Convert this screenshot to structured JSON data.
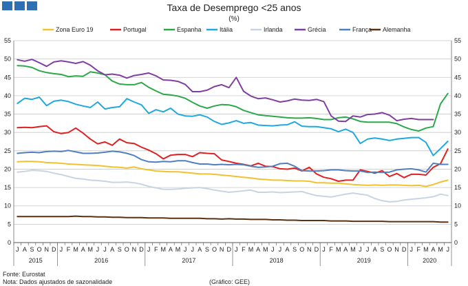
{
  "header": {
    "title": "Taxa de Desemprego <25 anos",
    "subtitle": "(%)"
  },
  "footer": {
    "source": "Fonte: Eurostat",
    "note": "Nota: Dados ajustados de sazonalidade",
    "credit": "(Gráfico: GEE)"
  },
  "colors": {
    "logo": "#2f6fb4",
    "grid": "#c8c8c8"
  },
  "chart_data": {
    "type": "line",
    "title": "Taxa de Desemprego <25 anos",
    "subtitle": "(%)",
    "ylim": [
      0,
      55
    ],
    "yticks": [
      0,
      5,
      10,
      15,
      20,
      25,
      30,
      35,
      40,
      45,
      50,
      55
    ],
    "legend_position": "top",
    "grid": "horizontal",
    "right_axis": true,
    "x_months": [
      "J",
      "A",
      "S",
      "O",
      "N",
      "D",
      "J",
      "F",
      "M",
      "A",
      "M",
      "J",
      "J",
      "A",
      "S",
      "O",
      "N",
      "D",
      "J",
      "F",
      "M",
      "A",
      "M",
      "J",
      "J",
      "A",
      "S",
      "O",
      "N",
      "D",
      "J",
      "F",
      "M",
      "A",
      "M",
      "J",
      "J",
      "A",
      "S",
      "O",
      "N",
      "D",
      "J",
      "F",
      "M",
      "A",
      "M",
      "J",
      "J",
      "A",
      "S",
      "O",
      "N",
      "D",
      "J",
      "F",
      "M",
      "A",
      "M",
      "J"
    ],
    "years": [
      {
        "label": "2015",
        "start": 0,
        "end": 5
      },
      {
        "label": "2016",
        "start": 6,
        "end": 17
      },
      {
        "label": "2017",
        "start": 18,
        "end": 29
      },
      {
        "label": "2018",
        "start": 30,
        "end": 41
      },
      {
        "label": "2019",
        "start": 42,
        "end": 53
      },
      {
        "label": "2020",
        "start": 54,
        "end": 59
      }
    ],
    "series": [
      {
        "name": "Zona Euro 19",
        "color": "#f2c12e",
        "values": [
          22.0,
          22.1,
          22.1,
          22.0,
          21.8,
          21.7,
          21.6,
          21.4,
          21.3,
          21.2,
          21.1,
          21.0,
          20.8,
          20.6,
          20.5,
          20.3,
          20.6,
          20.1,
          19.8,
          19.5,
          19.4,
          19.3,
          19.3,
          19.1,
          18.9,
          18.7,
          18.7,
          18.6,
          18.4,
          18.2,
          18.0,
          17.8,
          17.6,
          17.3,
          17.2,
          17.0,
          17.0,
          16.9,
          16.8,
          16.8,
          16.7,
          16.3,
          16.3,
          16.2,
          16.2,
          16.0,
          15.8,
          15.7,
          15.6,
          15.7,
          15.6,
          15.7,
          15.7,
          15.6,
          15.5,
          15.6,
          15.3,
          15.8,
          16.5,
          17.0
        ]
      },
      {
        "name": "Portugal",
        "color": "#e02020",
        "values": [
          31.3,
          31.4,
          31.3,
          31.6,
          31.8,
          30.2,
          29.7,
          30.0,
          31.2,
          29.8,
          28.2,
          26.9,
          27.4,
          26.5,
          28.2,
          27.2,
          27.0,
          26.0,
          25.2,
          24.2,
          22.8,
          23.8,
          24.0,
          24.0,
          23.4,
          24.5,
          24.3,
          24.2,
          22.5,
          22.1,
          21.6,
          21.3,
          20.9,
          21.6,
          20.8,
          20.7,
          20.1,
          20.0,
          20.3,
          19.5,
          20.5,
          18.7,
          17.8,
          17.4,
          16.7,
          17.0,
          17.0,
          19.8,
          19.4,
          18.9,
          19.6,
          18.0,
          18.8,
          17.7,
          18.6,
          18.6,
          18.4,
          20.5,
          21.5,
          25.5
        ]
      },
      {
        "name": "Espanha",
        "color": "#2aa84a",
        "values": [
          48.2,
          48.1,
          47.7,
          46.8,
          46.3,
          46.0,
          45.8,
          45.2,
          45.4,
          45.3,
          46.5,
          46.2,
          45.7,
          44.0,
          43.2,
          43.0,
          43.0,
          43.6,
          42.3,
          41.3,
          40.4,
          40.2,
          39.9,
          39.3,
          38.2,
          37.2,
          36.6,
          37.2,
          37.6,
          37.5,
          37.0,
          36.0,
          35.4,
          34.8,
          34.6,
          34.4,
          34.2,
          34.0,
          33.9,
          33.9,
          34.0,
          33.8,
          33.5,
          33.5,
          34.0,
          34.2,
          33.7,
          33.0,
          32.8,
          32.8,
          32.8,
          32.8,
          32.4,
          31.5,
          30.8,
          30.4,
          31.2,
          31.6,
          37.8,
          40.6
        ]
      },
      {
        "name": "Itália",
        "color": "#1ea7e0",
        "values": [
          37.9,
          39.3,
          39.0,
          39.6,
          37.3,
          38.5,
          38.8,
          38.4,
          37.7,
          37.2,
          36.8,
          38.3,
          36.4,
          36.8,
          37.0,
          39.2,
          38.3,
          37.5,
          35.2,
          36.2,
          35.6,
          36.6,
          35.0,
          34.5,
          34.4,
          34.8,
          34.2,
          33.0,
          32.2,
          32.6,
          33.2,
          32.5,
          32.7,
          32.0,
          31.9,
          31.8,
          32.0,
          32.1,
          32.9,
          31.7,
          31.6,
          31.6,
          31.3,
          31.0,
          30.2,
          30.9,
          30.0,
          27.0,
          28.2,
          28.5,
          28.2,
          27.8,
          28.2,
          28.4,
          28.6,
          28.6,
          27.3,
          23.7,
          25.6,
          27.6
        ]
      },
      {
        "name": "Irlanda",
        "color": "#c8d3e3",
        "values": [
          19.2,
          19.4,
          19.7,
          19.6,
          19.4,
          18.9,
          18.5,
          18.0,
          17.5,
          17.3,
          17.0,
          16.9,
          16.7,
          16.4,
          16.4,
          16.5,
          16.3,
          15.9,
          15.3,
          14.9,
          14.5,
          14.5,
          14.6,
          14.8,
          14.9,
          15.0,
          14.7,
          14.3,
          14.0,
          13.7,
          13.9,
          14.1,
          14.3,
          13.7,
          13.7,
          13.8,
          13.6,
          13.7,
          13.8,
          13.9,
          13.3,
          12.8,
          12.6,
          12.4,
          12.8,
          13.2,
          13.5,
          13.2,
          12.9,
          12.0,
          11.4,
          11.1,
          11.2,
          11.6,
          11.8,
          12.0,
          12.2,
          12.5,
          13.2,
          12.8
        ]
      },
      {
        "name": "Grécia",
        "color": "#7f3fa0",
        "values": [
          49.8,
          49.4,
          49.9,
          49.0,
          48.0,
          49.2,
          49.5,
          49.2,
          48.8,
          49.3,
          48.3,
          46.8,
          45.7,
          45.9,
          45.6,
          44.8,
          45.5,
          45.8,
          46.2,
          45.4,
          44.3,
          44.2,
          43.9,
          43.1,
          41.1,
          41.1,
          41.5,
          42.5,
          43.0,
          42.2,
          45.0,
          41.2,
          39.9,
          39.2,
          39.4,
          38.9,
          38.3,
          38.6,
          39.1,
          38.8,
          38.7,
          39.0,
          38.4,
          34.5,
          33.1,
          33.0,
          34.5,
          34.2,
          34.9,
          35.0,
          35.4,
          34.7,
          33.2,
          33.6,
          33.8,
          33.5,
          33.5,
          33.5,
          null,
          null
        ]
      },
      {
        "name": "França",
        "color": "#4f7fc0",
        "values": [
          24.3,
          24.5,
          24.6,
          24.5,
          24.8,
          24.9,
          24.8,
          25.1,
          24.7,
          24.3,
          24.3,
          24.4,
          24.6,
          24.9,
          24.7,
          24.3,
          23.7,
          22.6,
          22.0,
          21.9,
          22.1,
          22.0,
          22.3,
          22.3,
          21.8,
          21.4,
          21.4,
          21.2,
          21.3,
          21.2,
          21.3,
          21.2,
          20.8,
          20.5,
          20.6,
          20.8,
          21.5,
          21.6,
          20.8,
          19.6,
          19.5,
          19.5,
          19.6,
          19.8,
          19.8,
          19.6,
          19.5,
          19.5,
          19.1,
          19.2,
          19.1,
          19.2,
          19.8,
          20.0,
          20.1,
          19.8,
          19.2,
          21.6,
          21.3,
          21.3
        ]
      },
      {
        "name": "Alemanha",
        "color": "#5a3010",
        "values": [
          7.1,
          7.1,
          7.1,
          7.1,
          7.1,
          7.1,
          7.1,
          7.1,
          7.2,
          7.1,
          7.1,
          7.0,
          7.0,
          6.9,
          6.9,
          6.8,
          6.8,
          6.8,
          6.7,
          6.7,
          6.7,
          6.6,
          6.6,
          6.6,
          6.6,
          6.6,
          6.5,
          6.5,
          6.4,
          6.5,
          6.4,
          6.4,
          6.3,
          6.3,
          6.3,
          6.2,
          6.2,
          6.1,
          6.1,
          6.0,
          6.0,
          6.0,
          6.0,
          5.9,
          5.9,
          5.9,
          5.8,
          5.8,
          5.8,
          5.8,
          5.8,
          5.7,
          5.7,
          5.7,
          5.7,
          5.7,
          5.7,
          5.7,
          5.6,
          5.6
        ]
      }
    ]
  }
}
